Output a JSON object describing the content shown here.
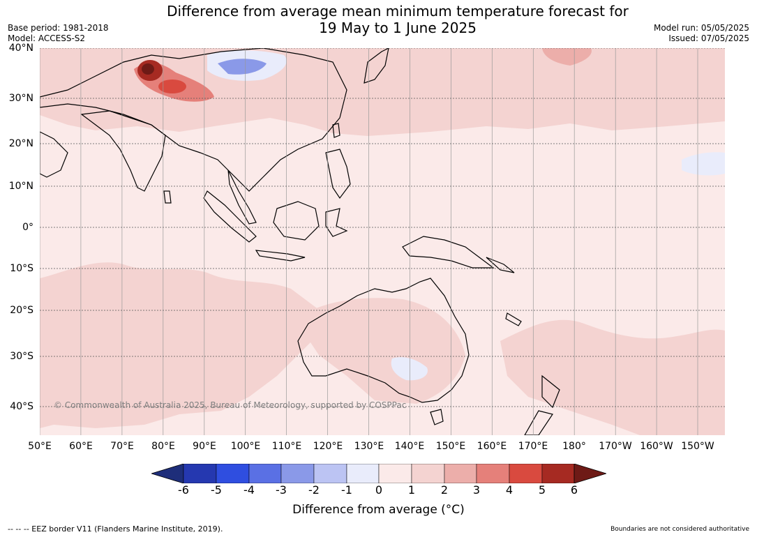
{
  "title_line1": "Difference from average mean minimum temperature forecast for",
  "title_line2": "19 May to 1 June 2025",
  "base_period": "Base period: 1981-2018",
  "model": "Model: ACCESS-S2",
  "model_run": "Model run: 05/05/2025",
  "issued": "Issued: 07/05/2025",
  "lat_labels": [
    "40°N",
    "30°N",
    "20°N",
    "10°N",
    "0°",
    "10°S",
    "20°S",
    "30°S",
    "40°S"
  ],
  "lon_labels": [
    "50°E",
    "60°E",
    "70°E",
    "80°E",
    "90°E",
    "100°E",
    "110°E",
    "120°E",
    "130°E",
    "140°E",
    "150°E",
    "160°E",
    "170°E",
    "180°",
    "170°W",
    "160°W",
    "150°W"
  ],
  "copyright": "© Commonwealth of Australia 2025, Bureau of Meteorology, supported by COSPPac",
  "colorbar": {
    "ticks": [
      "-6",
      "-5",
      "-4",
      "-3",
      "-2",
      "-1",
      "0",
      "1",
      "2",
      "3",
      "4",
      "5",
      "6"
    ],
    "colors": [
      "#1e2e7a",
      "#2538b0",
      "#2f4ee0",
      "#5a70e4",
      "#8a99e8",
      "#bcc4f3",
      "#e9ecfb",
      "#fbeae9",
      "#f4d3d1",
      "#ecaeaa",
      "#e5807a",
      "#d94a3f",
      "#a62a22",
      "#6e1a16"
    ],
    "label": "Difference from average (°C)"
  },
  "footer_left": "--  --  -- EEZ border V11 (Flanders Marine Institute, 2019).",
  "footer_right": "Boundaries are not considered authoritative"
}
